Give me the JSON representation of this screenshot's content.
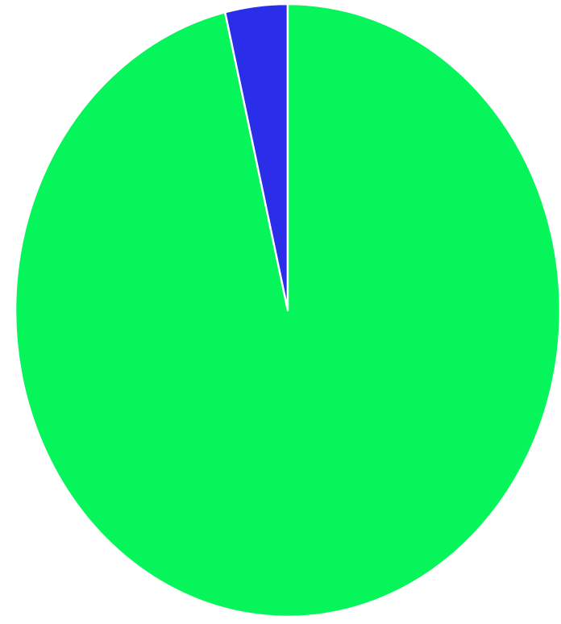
{
  "chart_data": {
    "type": "pie",
    "title": "",
    "categories": [
      "",
      ""
    ],
    "values": [
      3.7,
      96.3
    ],
    "colors": [
      "#2a2ee8",
      "#05f55a"
    ],
    "start_angle_deg": 0,
    "direction": "counterclockwise_from_top",
    "legend": "none"
  },
  "colors": {
    "background": "#ffffff",
    "separator": "#ffffff"
  }
}
